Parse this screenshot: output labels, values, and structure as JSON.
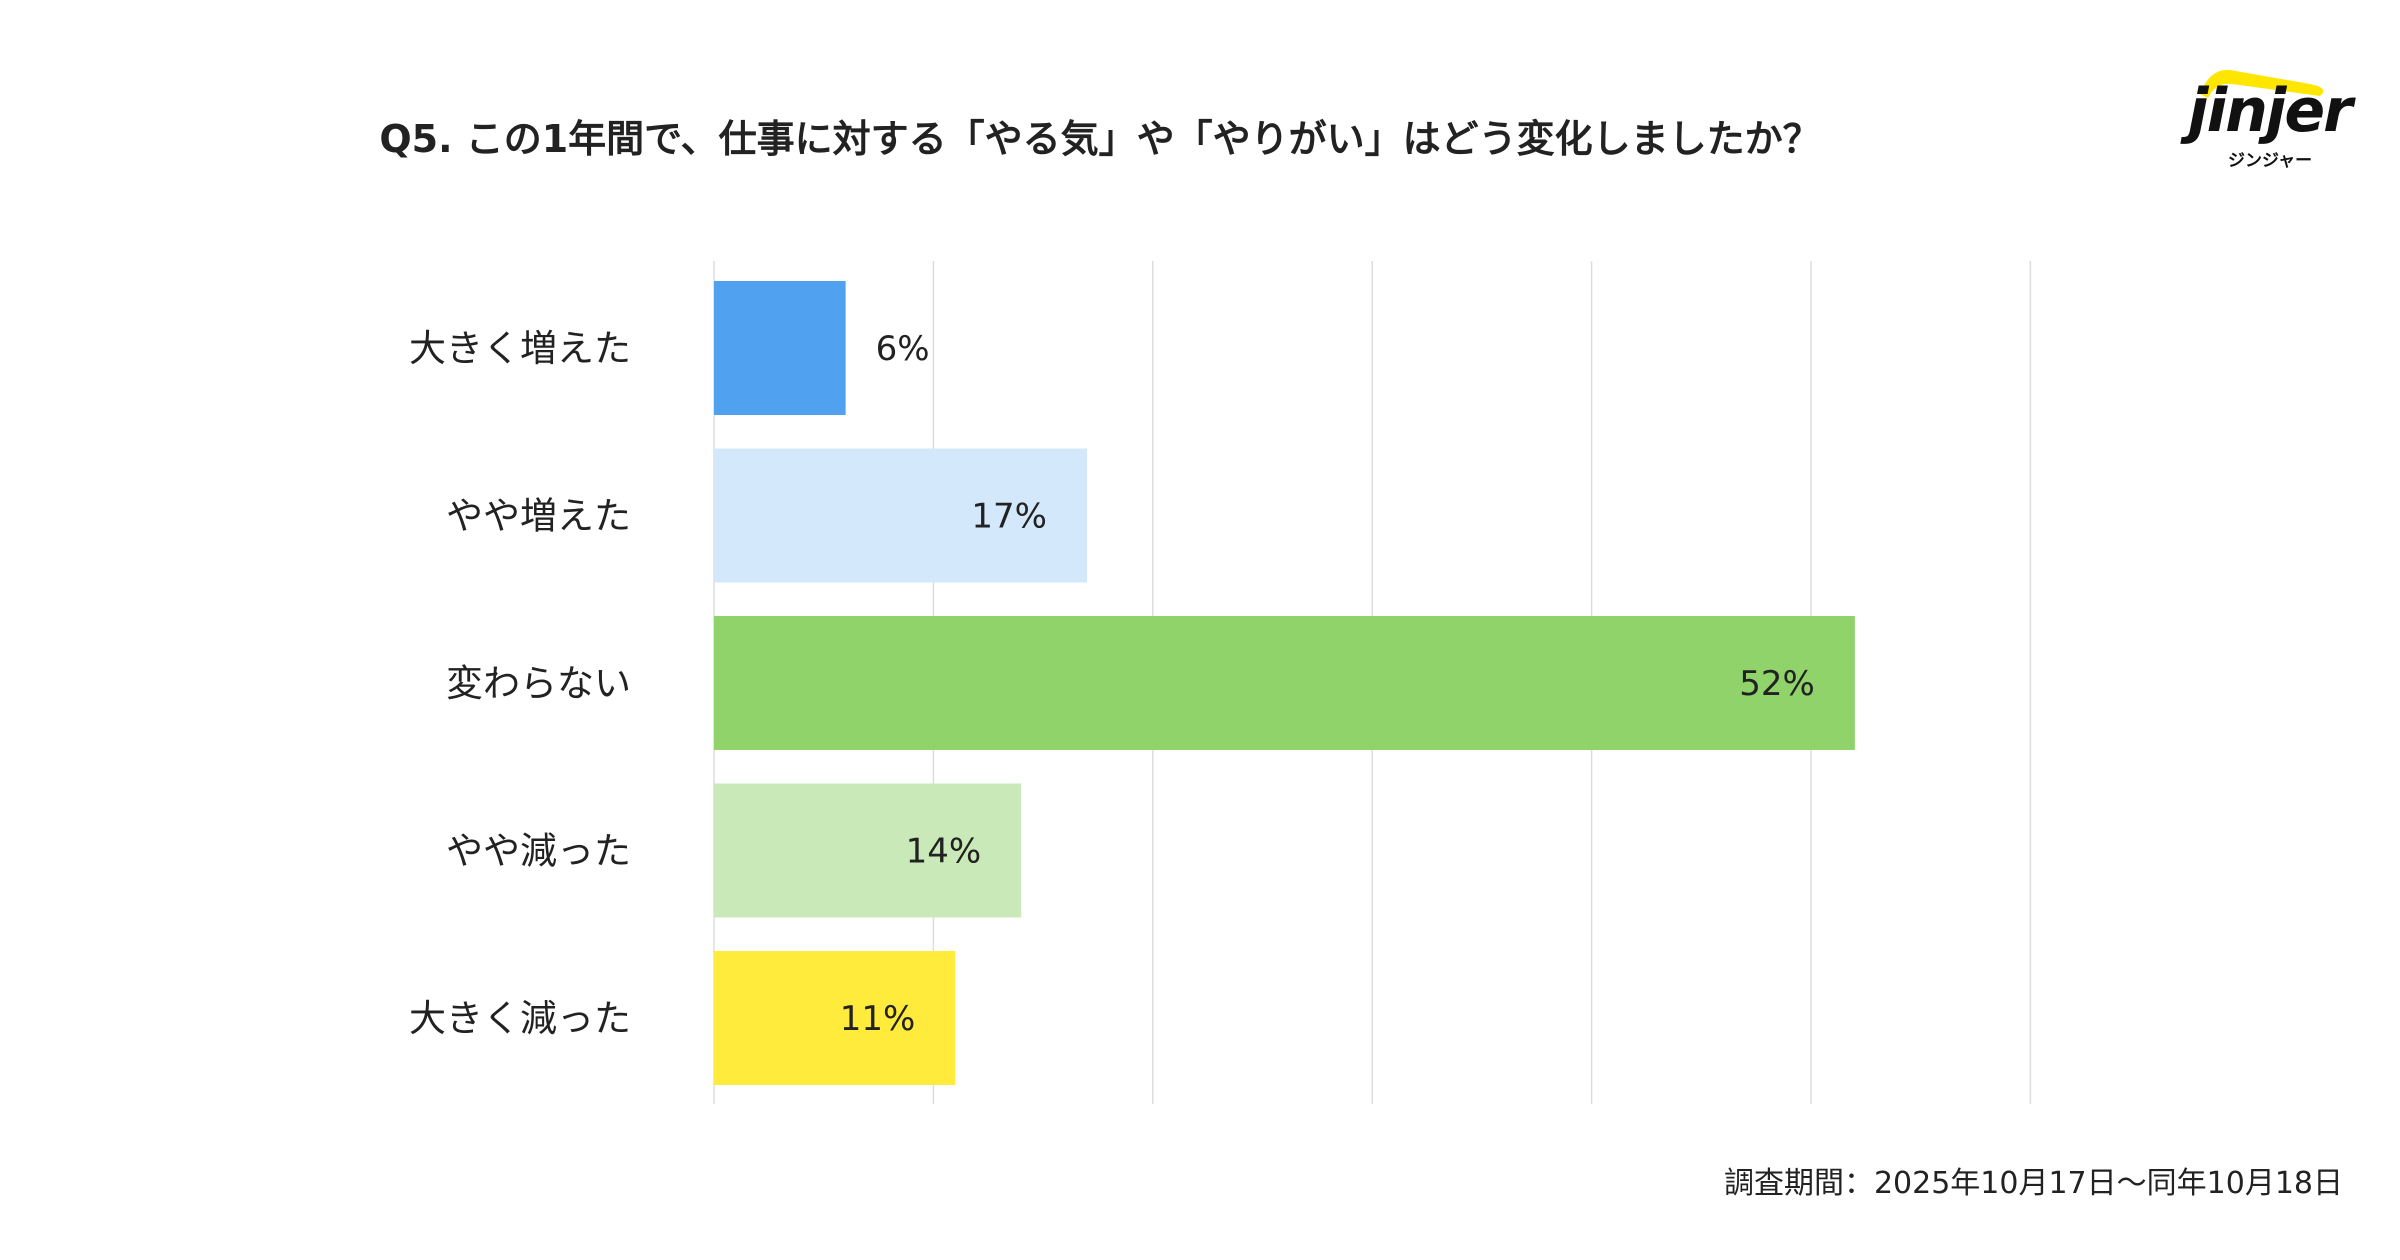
{
  "title": "Q5. この1年間で、仕事に対する「やる気」や「やりがい」はどう変化しましたか？",
  "logo": {
    "word": "jinjer",
    "kana": "ジンジャー",
    "accent": "#FFE600"
  },
  "footnote": "調査期間：2025年10月17日〜同年10月18日",
  "chart_data": {
    "type": "bar",
    "orientation": "horizontal",
    "title": "Q5. この1年間で、仕事に対する「やる気」や「やりがい」はどう変化しましたか？",
    "categories": [
      "大きく増えた",
      "やや増えた",
      "変わらない",
      "やや減った",
      "大きく減った"
    ],
    "values": [
      6,
      17,
      52,
      14,
      11
    ],
    "labels": [
      "6%",
      "17%",
      "52%",
      "14%",
      "11%"
    ],
    "colors": [
      "#51A1F1",
      "#D4E8FB",
      "#90D36A",
      "#CAE9B8",
      "#FFEB3B"
    ],
    "xlim": [
      0,
      60
    ],
    "grid": true,
    "grid_step": 10,
    "xlabel": "",
    "ylabel": "",
    "legend": "none"
  }
}
